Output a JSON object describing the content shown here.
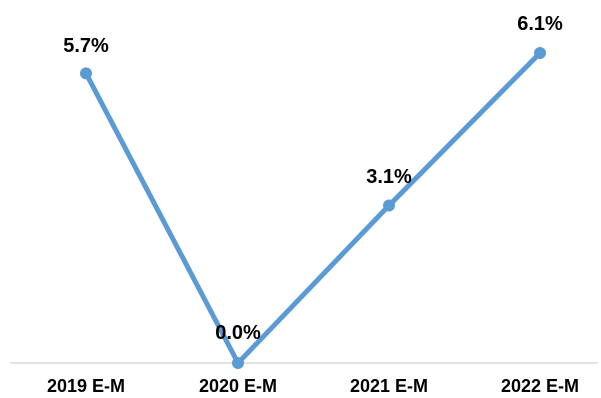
{
  "chart_data": {
    "type": "line",
    "title": "",
    "xlabel": "",
    "ylabel": "",
    "categories": [
      "2019 E-M",
      "2020 E-M",
      "2021 E-M",
      "2022 E-M"
    ],
    "series": [
      {
        "values": [
          5.7,
          0.0,
          3.1,
          6.1
        ],
        "labels": [
          "5.7%",
          "0.0%",
          "3.1%",
          "6.1%"
        ],
        "color": "#5B9BD5"
      }
    ],
    "ylim": [
      0,
      6.1
    ],
    "grid": false,
    "legend": "none",
    "axis_color": "#D9D9D9",
    "label_color": "#000000"
  }
}
